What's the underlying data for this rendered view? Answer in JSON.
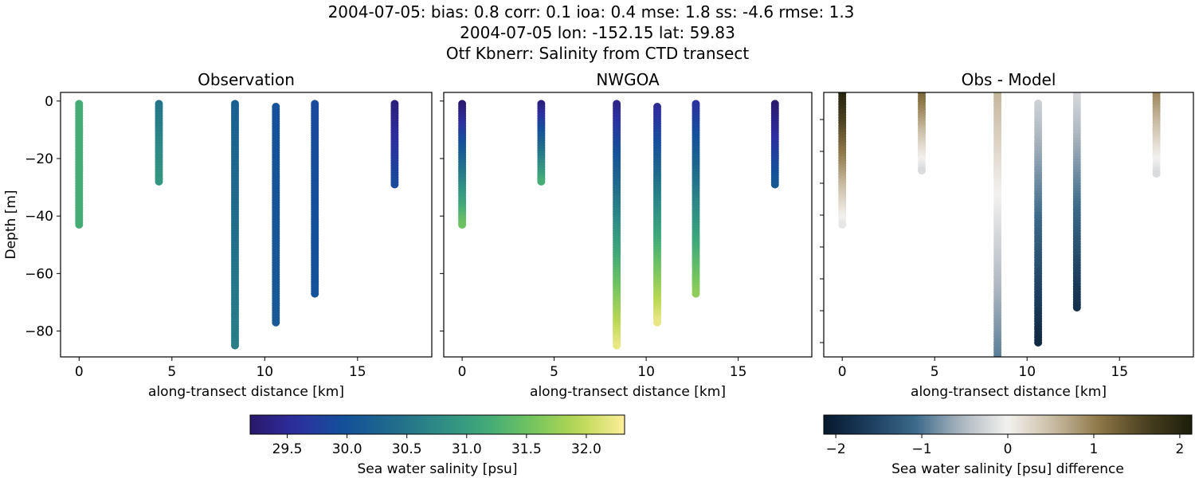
{
  "title_lines": [
    "2004-07-05: bias: 0.8  corr: 0.1  ioa: 0.4  mse: 1.8  ss: -4.6  rmse: 1.3",
    "2004-07-05 lon: -152.15 lat: 59.83",
    "Otf Kbnerr: Salinity from CTD transect"
  ],
  "colormaps": {
    "salinity": [
      "#2a186c",
      "#2d2fa0",
      "#14509a",
      "#1f6a8c",
      "#2e8a86",
      "#3ea87a",
      "#72c460",
      "#b8d752",
      "#fdee99"
    ],
    "difference": [
      "#07192d",
      "#1c3d5e",
      "#3c6a8a",
      "#aeb7c0",
      "#f3f1ef",
      "#c9bba2",
      "#8c7646",
      "#4a4020",
      "#1c1e0a"
    ]
  },
  "chart_data": [
    {
      "type": "scatter",
      "title": "Observation",
      "xlabel": "along-transect distance [km]",
      "ylabel": "Depth [m]",
      "xlim": [
        -1.0,
        19.0
      ],
      "ylim": [
        -89,
        3
      ],
      "xticks": [
        0,
        5,
        10,
        15
      ],
      "yticks": [
        0,
        -20,
        -40,
        -60,
        -80
      ],
      "ytick_labels": true,
      "colormap": "salinity",
      "clim": [
        29.19,
        32.32
      ],
      "profiles": [
        {
          "x": 0.0,
          "depth": [
            -1,
            -43
          ],
          "values": [
            31.2,
            31.2
          ]
        },
        {
          "x": 4.3,
          "depth": [
            -1,
            -28
          ],
          "values": [
            30.5,
            30.9
          ]
        },
        {
          "x": 8.4,
          "depth": [
            -1,
            -85
          ],
          "values": [
            30.2,
            30.6
          ]
        },
        {
          "x": 10.6,
          "depth": [
            -2,
            -77
          ],
          "values": [
            30.0,
            30.1
          ]
        },
        {
          "x": 12.7,
          "depth": [
            -1,
            -67
          ],
          "values": [
            29.9,
            30.0
          ]
        },
        {
          "x": 17.0,
          "depth": [
            -1,
            -29
          ],
          "values": [
            29.3,
            29.9
          ]
        }
      ]
    },
    {
      "type": "scatter",
      "title": "NWGOA",
      "xlabel": "along-transect distance [km]",
      "xlim": [
        -1.0,
        19.0
      ],
      "ylim": [
        -89,
        3
      ],
      "xticks": [
        0,
        5,
        10,
        15
      ],
      "yticks": [
        0,
        -20,
        -40,
        -60,
        -80
      ],
      "ytick_labels": false,
      "colormap": "salinity",
      "clim": [
        29.19,
        32.32
      ],
      "profiles": [
        {
          "x": 0.0,
          "depth": [
            -1,
            -43
          ],
          "values": [
            29.2,
            31.5
          ]
        },
        {
          "x": 4.3,
          "depth": [
            -1,
            -28
          ],
          "values": [
            29.3,
            31.2
          ]
        },
        {
          "x": 8.4,
          "depth": [
            -1,
            -85
          ],
          "values": [
            29.4,
            32.2
          ]
        },
        {
          "x": 10.6,
          "depth": [
            -2,
            -77
          ],
          "values": [
            29.5,
            32.2
          ]
        },
        {
          "x": 12.7,
          "depth": [
            -1,
            -67
          ],
          "values": [
            29.6,
            31.7
          ]
        },
        {
          "x": 17.0,
          "depth": [
            -1,
            -29
          ],
          "values": [
            29.2,
            30.1
          ]
        }
      ]
    },
    {
      "type": "scatter",
      "title": "Obs - Model",
      "xlabel": "along-transect distance [km]",
      "xlim": [
        -1.0,
        19.0
      ],
      "ylim": [
        -84.5,
        -1.5
      ],
      "xticks": [
        0,
        5,
        10,
        15
      ],
      "yticks": [
        -10,
        -20,
        -30,
        -40,
        -50,
        -60,
        -70,
        -80
      ],
      "ytick_labels": false,
      "colormap": "difference",
      "clim": [
        -2.14,
        2.14
      ],
      "profiles": [
        {
          "x": 0.0,
          "depth": [
            -1,
            -43
          ],
          "values": [
            2.1,
            -0.1
          ]
        },
        {
          "x": 4.3,
          "depth": [
            -1,
            -26
          ],
          "values": [
            1.3,
            -0.2
          ]
        },
        {
          "x": 8.4,
          "depth": [
            -1,
            -89
          ],
          "values": [
            0.6,
            -1.0
          ]
        },
        {
          "x": 10.6,
          "depth": [
            -5,
            -80
          ],
          "values": [
            -0.3,
            -1.9
          ]
        },
        {
          "x": 12.7,
          "depth": [
            -1,
            -69
          ],
          "values": [
            -0.2,
            -1.8
          ]
        },
        {
          "x": 17.0,
          "depth": [
            -1,
            -27
          ],
          "values": [
            1.0,
            -0.2
          ]
        }
      ]
    }
  ],
  "colorbars": [
    {
      "colormap": "salinity",
      "range": [
        29.19,
        32.32
      ],
      "ticks": [
        "29.5",
        "30.0",
        "30.5",
        "31.0",
        "31.5",
        "32.0"
      ],
      "label": "Sea water salinity [psu]"
    },
    {
      "colormap": "difference",
      "range": [
        -2.14,
        2.14
      ],
      "ticks": [
        "−2",
        "−1",
        "0",
        "1",
        "2"
      ],
      "label": "Sea water salinity [psu] difference"
    }
  ]
}
